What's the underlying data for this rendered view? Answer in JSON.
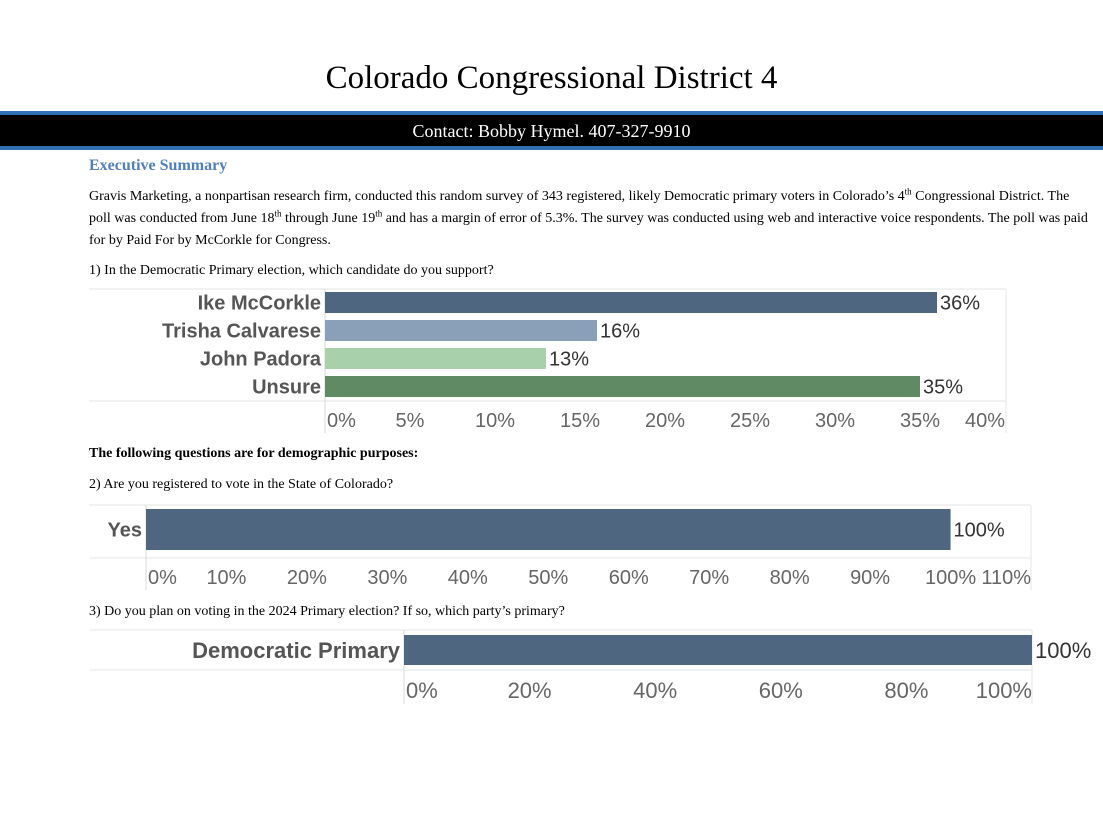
{
  "header": {
    "title": "Colorado Congressional District 4",
    "contact": "Contact: Bobby Hymel. 407-327-9910"
  },
  "summary": {
    "heading": "Executive Summary",
    "p_1": "Gravis Marketing, a nonpartisan research firm, conducted this random survey of 343 registered, likely Democratic primary voters in Colorado’s 4",
    "p_sup1": "th",
    "p_2": " Congressional District. The poll was conducted from June 18",
    "p_sup2": "th",
    "p_3": " through June 19",
    "p_sup3": "th",
    "p_4": " and has a margin of error of 5.3%. The survey was conducted using web and interactive voice respondents. The poll was paid for by Paid For by McCorkle for Congress."
  },
  "questions": {
    "q1": "1) In the Democratic Primary election, which candidate do you support?",
    "demographic_heading": "The following questions are for demographic purposes:",
    "q2": "2) Are you registered to vote in the State of Colorado?",
    "q3": "3) Do you plan on voting in the 2024 Primary election? If so, which party’s primary?"
  },
  "chart_data": [
    {
      "type": "bar",
      "orientation": "horizontal",
      "categories": [
        "Ike McCorkle",
        "Trisha Calvarese",
        "John Padora",
        "Unsure"
      ],
      "values": [
        36,
        16,
        13,
        35
      ],
      "value_labels": [
        "36%",
        "16%",
        "13%",
        "35%"
      ],
      "colors": [
        "#4e6680",
        "#8aa0b8",
        "#a8d1ab",
        "#5f8a63"
      ],
      "xlim": [
        0,
        40
      ],
      "ticks": [
        "0%",
        "5%",
        "10%",
        "15%",
        "20%",
        "25%",
        "30%",
        "35%",
        "40%"
      ]
    },
    {
      "type": "bar",
      "orientation": "horizontal",
      "categories": [
        "Yes"
      ],
      "values": [
        100
      ],
      "value_labels": [
        "100%"
      ],
      "colors": [
        "#4e6680"
      ],
      "xlim": [
        0,
        110
      ],
      "ticks": [
        "0%",
        "10%",
        "20%",
        "30%",
        "40%",
        "50%",
        "60%",
        "70%",
        "80%",
        "90%",
        "100%",
        "110%"
      ]
    },
    {
      "type": "bar",
      "orientation": "horizontal",
      "categories": [
        "Democratic Primary"
      ],
      "values": [
        100
      ],
      "value_labels": [
        "100%"
      ],
      "colors": [
        "#4e6680"
      ],
      "xlim": [
        0,
        100
      ],
      "ticks": [
        "0%",
        "20%",
        "40%",
        "60%",
        "80%",
        "100%"
      ]
    }
  ]
}
